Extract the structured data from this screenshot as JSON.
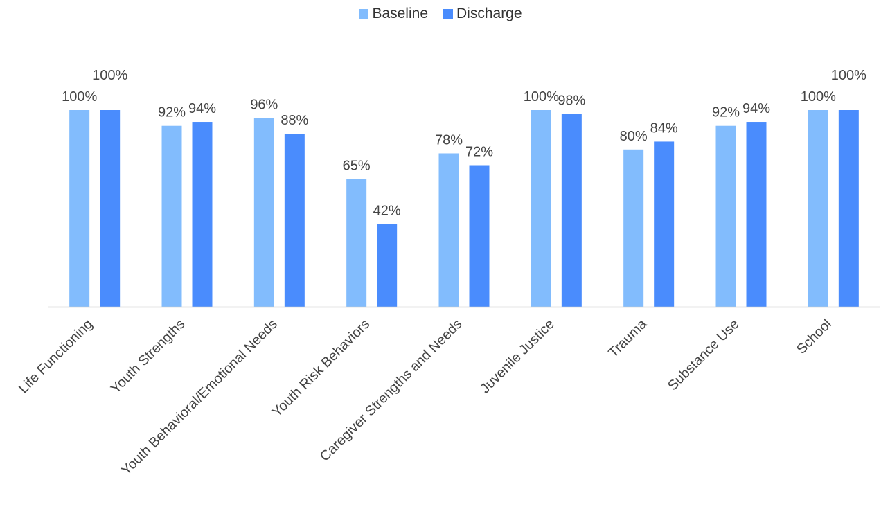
{
  "chart_data": {
    "type": "bar",
    "title": "",
    "xlabel": "",
    "ylabel": "",
    "ylim": [
      0,
      100
    ],
    "grid": false,
    "legend_position": "top-center",
    "categories": [
      "Life Functioning",
      "Youth Strengths",
      "Youth Behavioral/Emotional Needs",
      "Youth Risk Behaviors",
      "Caregiver Strengths and Needs",
      "Juvenile Justice",
      "Trauma",
      "Substance Use",
      "School"
    ],
    "series": [
      {
        "name": "Baseline",
        "color": "#82bcfd",
        "values": [
          100,
          92,
          96,
          65,
          78,
          100,
          80,
          92,
          100
        ],
        "labels": [
          "100%",
          "92%",
          "96%",
          "65%",
          "78%",
          "100%",
          "80%",
          "92%",
          "100%"
        ]
      },
      {
        "name": "Discharge",
        "color": "#4a8cfd",
        "values": [
          100,
          94,
          88,
          42,
          72,
          98,
          84,
          94,
          100
        ],
        "labels": [
          "100%",
          "94%",
          "88%",
          "42%",
          "72%",
          "98%",
          "84%",
          "94%",
          "100%"
        ]
      }
    ]
  }
}
